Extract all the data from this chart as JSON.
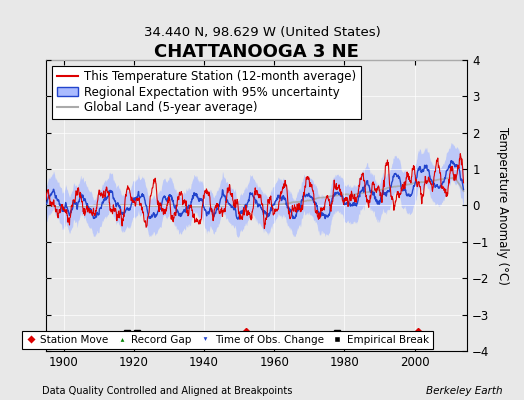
{
  "title": "CHATTANOOGA 3 NE",
  "subtitle": "34.440 N, 98.629 W (United States)",
  "ylabel": "Temperature Anomaly (°C)",
  "footer_left": "Data Quality Controlled and Aligned at Breakpoints",
  "footer_right": "Berkeley Earth",
  "xlim": [
    1895,
    2015
  ],
  "ylim": [
    -4,
    4
  ],
  "yticks": [
    -4,
    -3,
    -2,
    -1,
    0,
    1,
    2,
    3,
    4
  ],
  "xticks": [
    1900,
    1920,
    1940,
    1960,
    1980,
    2000
  ],
  "station_moves": [
    1952,
    2001
  ],
  "empirical_breaks": [
    1918,
    1921,
    1978
  ],
  "time_of_obs_changes": [],
  "record_gaps": [],
  "bg_color": "#e8e8e8",
  "plot_bg_color": "#e8e8e8",
  "red_color": "#dd0000",
  "blue_color": "#2244cc",
  "blue_fill_color": "#aabbff",
  "gray_color": "#aaaaaa",
  "legend_fontsize": 8.5,
  "title_fontsize": 13,
  "subtitle_fontsize": 9.5
}
